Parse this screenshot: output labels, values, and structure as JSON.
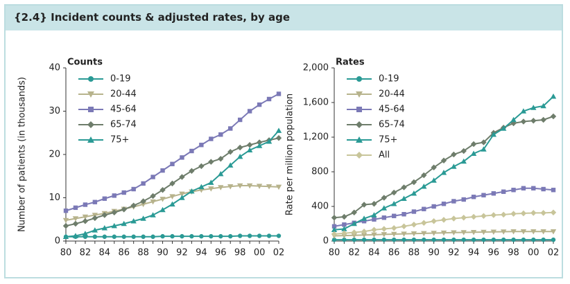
{
  "title": "{2.4} Incident counts & adjusted rates, by age",
  "chart_data": [
    {
      "type": "line",
      "title": "Counts",
      "ylabel": "Number of patients (in thousands)",
      "categories": [
        "80",
        null,
        "82",
        null,
        "84",
        null,
        "86",
        null,
        "88",
        null,
        "90",
        null,
        "92",
        null,
        "94",
        null,
        "96",
        null,
        "98",
        null,
        "00",
        null,
        "02"
      ],
      "ylim": [
        0,
        40
      ],
      "yticks": [
        0,
        10,
        20,
        30,
        40
      ],
      "series": [
        {
          "name": "0-19",
          "color": "#2a9a95",
          "marker": "circle",
          "values": [
            1.0,
            1.0,
            1.0,
            1.0,
            1.0,
            1.0,
            1.0,
            1.0,
            1.0,
            1.0,
            1.1,
            1.1,
            1.1,
            1.1,
            1.1,
            1.1,
            1.1,
            1.1,
            1.2,
            1.2,
            1.2,
            1.2,
            1.2
          ]
        },
        {
          "name": "20-44",
          "color": "#b7b38c",
          "marker": "triangle-down",
          "values": [
            4.8,
            5.2,
            5.6,
            6.0,
            6.4,
            6.9,
            7.4,
            7.9,
            8.5,
            9.1,
            9.7,
            10.3,
            10.9,
            11.4,
            11.8,
            12.1,
            12.4,
            12.6,
            12.8,
            12.8,
            12.7,
            12.6,
            12.5
          ]
        },
        {
          "name": "45-64",
          "color": "#7b79b6",
          "marker": "square",
          "values": [
            7.0,
            7.7,
            8.4,
            9.0,
            9.8,
            10.5,
            11.2,
            12.0,
            13.3,
            14.8,
            16.3,
            17.8,
            19.3,
            20.8,
            22.2,
            23.6,
            24.6,
            26.0,
            28.0,
            30.0,
            31.5,
            32.8,
            34.0
          ]
        },
        {
          "name": "65-74",
          "color": "#6e7d6b",
          "marker": "diamond",
          "values": [
            3.5,
            4.0,
            4.6,
            5.3,
            6.0,
            6.6,
            7.3,
            8.2,
            9.2,
            10.4,
            11.8,
            13.3,
            14.8,
            16.2,
            17.3,
            18.3,
            19.0,
            20.6,
            21.6,
            22.2,
            22.8,
            23.3,
            23.8
          ]
        },
        {
          "name": "75+",
          "color": "#2a9a95",
          "marker": "triangle-up",
          "values": [
            1.0,
            1.2,
            1.7,
            2.5,
            3.0,
            3.5,
            4.0,
            4.6,
            5.2,
            6.0,
            7.2,
            8.5,
            10.0,
            11.5,
            12.5,
            13.5,
            15.5,
            17.5,
            19.5,
            21.0,
            22.0,
            23.0,
            25.5
          ]
        }
      ]
    },
    {
      "type": "line",
      "title": "Rates",
      "ylabel": "Rate per million population",
      "categories": [
        "80",
        null,
        "82",
        null,
        "84",
        null,
        "86",
        null,
        "88",
        null,
        "90",
        null,
        "92",
        null,
        "94",
        null,
        "96",
        null,
        "98",
        null,
        "00",
        null,
        "02"
      ],
      "ylim": [
        0,
        2000
      ],
      "yticks": [
        0,
        400,
        800,
        {
          "value": 1200,
          "label": "1,200"
        },
        {
          "value": 1600,
          "label": "1,600"
        },
        {
          "value": 2000,
          "label": "2,000"
        }
      ],
      "series": [
        {
          "name": "0-19",
          "color": "#2a9a95",
          "marker": "circle",
          "values": [
            15,
            15,
            15,
            15,
            15,
            15,
            15,
            15,
            15,
            15,
            15,
            15,
            15,
            15,
            15,
            15,
            15,
            15,
            15,
            15,
            15,
            15,
            15
          ]
        },
        {
          "name": "20-44",
          "color": "#b7b38c",
          "marker": "triangle-down",
          "values": [
            60,
            63,
            66,
            70,
            73,
            77,
            80,
            83,
            86,
            89,
            92,
            95,
            98,
            100,
            102,
            104,
            106,
            108,
            110,
            110,
            110,
            110,
            110
          ]
        },
        {
          "name": "45-64",
          "color": "#7b79b6",
          "marker": "square",
          "values": [
            170,
            190,
            210,
            230,
            250,
            270,
            290,
            310,
            340,
            370,
            400,
            430,
            460,
            480,
            510,
            530,
            550,
            570,
            590,
            610,
            610,
            600,
            590
          ]
        },
        {
          "name": "65-74",
          "color": "#6e7d6b",
          "marker": "diamond",
          "values": [
            270,
            280,
            330,
            420,
            430,
            500,
            560,
            620,
            680,
            760,
            850,
            930,
            1000,
            1040,
            1120,
            1140,
            1250,
            1310,
            1360,
            1380,
            1390,
            1400,
            1440
          ]
        },
        {
          "name": "75+",
          "color": "#2a9a95",
          "marker": "triangle-up",
          "values": [
            130,
            140,
            200,
            260,
            300,
            380,
            430,
            490,
            550,
            630,
            700,
            790,
            860,
            920,
            1010,
            1060,
            1230,
            1300,
            1400,
            1500,
            1540,
            1560,
            1670
          ]
        },
        {
          "name": "All",
          "color": "#c8c59a",
          "marker": "diamond",
          "values": [
            80,
            90,
            100,
            110,
            130,
            140,
            150,
            170,
            190,
            210,
            230,
            245,
            260,
            270,
            280,
            290,
            300,
            305,
            315,
            320,
            325,
            325,
            330
          ]
        }
      ]
    }
  ]
}
